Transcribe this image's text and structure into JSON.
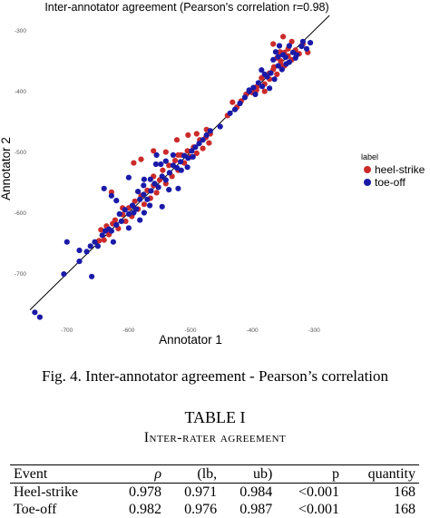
{
  "figure": {
    "chart_data": {
      "type": "scatter",
      "title": "Inter-annotator agreement (Pearson's correlation r=0.98)",
      "xlabel": "Annotator 1",
      "ylabel": "Annotator 2",
      "x_ticks": [
        "-700",
        "-600",
        "-500",
        "-400",
        "-300"
      ],
      "y_ticks": [
        "-300",
        "-400",
        "-500",
        "-600",
        "-700"
      ],
      "xlim": [
        -760,
        -240
      ],
      "ylim": [
        -780,
        -275
      ],
      "grid": false,
      "reference_line": "y = x",
      "legend": {
        "title": "label",
        "placement": "right",
        "entries": [
          "heel-strike",
          "toe-off"
        ]
      },
      "series": [
        {
          "name": "heel-strike",
          "color": "#cc2a2a",
          "points": [
            [
              -648,
              -646
            ],
            [
              -645,
              -628
            ],
            [
              -640,
              -645
            ],
            [
              -636,
              -622
            ],
            [
              -632,
              -636
            ],
            [
              -626,
              -618
            ],
            [
              -622,
              -612
            ],
            [
              -617,
              -626
            ],
            [
              -610,
              -603
            ],
            [
              -605,
              -614
            ],
            [
              -600,
              -592
            ],
            [
              -595,
              -606
            ],
            [
              -590,
              -581
            ],
            [
              -585,
              -594
            ],
            [
              -580,
              -572
            ],
            [
              -575,
              -586
            ],
            [
              -570,
              -563
            ],
            [
              -565,
              -576
            ],
            [
              -560,
              -555
            ],
            [
              -555,
              -567
            ],
            [
              -550,
              -546
            ],
            [
              -545,
              -530
            ],
            [
              -540,
              -552
            ],
            [
              -535,
              -522
            ],
            [
              -530,
              -540
            ],
            [
              -525,
              -514
            ],
            [
              -520,
              -530
            ],
            [
              -515,
              -505
            ],
            [
              -510,
              -518
            ],
            [
              -505,
              -498
            ],
            [
              -500,
              -508
            ],
            [
              -495,
              -492
            ],
            [
              -490,
              -502
            ],
            [
              -485,
              -480
            ],
            [
              -480,
              -494
            ],
            [
              -475,
              -476
            ],
            [
              -470,
              -485
            ],
            [
              -592,
              -518
            ],
            [
              -580,
              -512
            ],
            [
              -560,
              -540
            ],
            [
              -520,
              -505
            ],
            [
              -540,
              -500
            ],
            [
              -628,
              -566
            ],
            [
              -610,
              -592
            ],
            [
              -560,
              -498
            ],
            [
              -522,
              -480
            ],
            [
              -504,
              -472
            ],
            [
              -490,
              -470
            ],
            [
              -474,
              -463
            ],
            [
              -468,
              -470
            ],
            [
              -440,
              -440
            ],
            [
              -432,
              -418
            ],
            [
              -425,
              -426
            ],
            [
              -418,
              -416
            ],
            [
              -410,
              -405
            ],
            [
              -400,
              -402
            ],
            [
              -392,
              -392
            ],
            [
              -385,
              -378
            ],
            [
              -380,
              -388
            ],
            [
              -372,
              -370
            ],
            [
              -366,
              -364
            ],
            [
              -360,
              -372
            ],
            [
              -354,
              -350
            ],
            [
              -348,
              -358
            ],
            [
              -342,
              -342
            ],
            [
              -336,
              -348
            ],
            [
              -330,
              -332
            ],
            [
              -324,
              -338
            ],
            [
              -318,
              -322
            ],
            [
              -354,
              -356
            ],
            [
              -348,
              -336
            ],
            [
              -360,
              -345
            ],
            [
              -372,
              -380
            ],
            [
              -342,
              -330
            ],
            [
              -336,
              -318
            ],
            [
              -366,
              -322
            ],
            [
              -355,
              -335
            ],
            [
              -310,
              -336
            ],
            [
              -350,
              -310
            ],
            [
              -365,
              -360
            ],
            [
              -380,
              -400
            ],
            [
              -393,
              -398
            ]
          ]
        },
        {
          "name": "toe-off",
          "color": "#1a1aa8",
          "points": [
            [
              -752,
              -764
            ],
            [
              -744,
              -772
            ],
            [
              -705,
              -701
            ],
            [
              -700,
              -648
            ],
            [
              -680,
              -680
            ],
            [
              -668,
              -664
            ],
            [
              -662,
              -655
            ],
            [
              -655,
              -648
            ],
            [
              -650,
              -655
            ],
            [
              -643,
              -637
            ],
            [
              -638,
              -630
            ],
            [
              -632,
              -627
            ],
            [
              -628,
              -630
            ],
            [
              -620,
              -620
            ],
            [
              -612,
              -614
            ],
            [
              -606,
              -595
            ],
            [
              -600,
              -602
            ],
            [
              -594,
              -588
            ],
            [
              -588,
              -594
            ],
            [
              -582,
              -578
            ],
            [
              -576,
              -570
            ],
            [
              -570,
              -578
            ],
            [
              -564,
              -564
            ],
            [
              -558,
              -552
            ],
            [
              -552,
              -558
            ],
            [
              -546,
              -540
            ],
            [
              -540,
              -546
            ],
            [
              -534,
              -534
            ],
            [
              -528,
              -522
            ],
            [
              -522,
              -526
            ],
            [
              -516,
              -516
            ],
            [
              -510,
              -506
            ],
            [
              -504,
              -510
            ],
            [
              -498,
              -498
            ],
            [
              -492,
              -492
            ],
            [
              -486,
              -486
            ],
            [
              -480,
              -480
            ],
            [
              -474,
              -472
            ],
            [
              -468,
              -465
            ],
            [
              -625,
              -648
            ],
            [
              -615,
              -602
            ],
            [
              -600,
              -625
            ],
            [
              -585,
              -565
            ],
            [
              -575,
              -600
            ],
            [
              -565,
              -545
            ],
            [
              -556,
              -520
            ],
            [
              -546,
              -590
            ],
            [
              -535,
              -562
            ],
            [
              -528,
              -505
            ],
            [
              -515,
              -530
            ],
            [
              -600,
              -542
            ],
            [
              -582,
              -612
            ],
            [
              -548,
              -520
            ],
            [
              -520,
              -560
            ],
            [
              -505,
              -525
            ],
            [
              -540,
              -515
            ],
            [
              -592,
              -600
            ],
            [
              -576,
              -555
            ],
            [
              -660,
              -705
            ],
            [
              -680,
              -662
            ],
            [
              -640,
              -560
            ],
            [
              -620,
              -580
            ],
            [
              -628,
              -572
            ],
            [
              -496,
              -508
            ],
            [
              -555,
              -505
            ],
            [
              -575,
              -545
            ],
            [
              -566,
              -588
            ],
            [
              -452,
              -458
            ],
            [
              -436,
              -436
            ],
            [
              -428,
              -430
            ],
            [
              -420,
              -420
            ],
            [
              -412,
              -410
            ],
            [
              -405,
              -400
            ],
            [
              -398,
              -394
            ],
            [
              -390,
              -386
            ],
            [
              -384,
              -392
            ],
            [
              -376,
              -376
            ],
            [
              -370,
              -370
            ],
            [
              -364,
              -380
            ],
            [
              -358,
              -358
            ],
            [
              -352,
              -364
            ],
            [
              -346,
              -344
            ],
            [
              -340,
              -352
            ],
            [
              -334,
              -336
            ],
            [
              -328,
              -340
            ],
            [
              -320,
              -326
            ],
            [
              -312,
              -330
            ],
            [
              -306,
              -320
            ],
            [
              -350,
              -340
            ],
            [
              -362,
              -335
            ],
            [
              -356,
              -325
            ],
            [
              -340,
              -325
            ],
            [
              -330,
              -345
            ],
            [
              -385,
              -365
            ],
            [
              -395,
              -405
            ],
            [
              -405,
              -398
            ],
            [
              -372,
              -395
            ],
            [
              -366,
              -348
            ],
            [
              -318,
              -318
            ],
            [
              -345,
              -355
            ],
            [
              -380,
              -372
            ],
            [
              -358,
              -343
            ]
          ]
        }
      ]
    },
    "caption": "Fig. 4.    Inter-annotator agreement - Pearson’s correlation"
  },
  "table": {
    "number": "TABLE I",
    "title": "Inter-rater agreement",
    "headers": [
      "Event",
      "ρ",
      "(lb,",
      "ub)",
      "p",
      "quantity"
    ],
    "rows": [
      [
        "Heel-strike",
        "0.978",
        "0.971",
        "0.984",
        "<0.001",
        "168"
      ],
      [
        "Toe-off",
        "0.982",
        "0.976",
        "0.987",
        "<0.001",
        "168"
      ]
    ]
  }
}
